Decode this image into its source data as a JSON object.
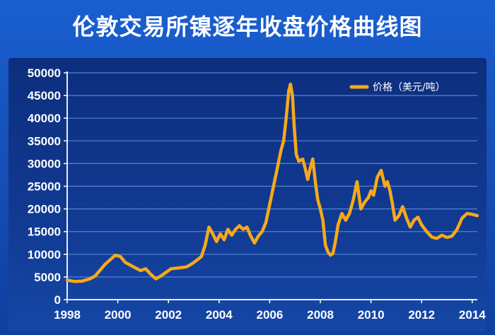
{
  "title": "伦敦交易所镍逐年收盘价格曲线图",
  "colors": {
    "line": "#f6a91b",
    "grid": "#4f86d6",
    "axis": "#ffffff",
    "text": "#ffffff"
  },
  "chart_data": {
    "type": "line",
    "title": "伦敦交易所镍逐年收盘价格曲线图",
    "xlabel": "",
    "ylabel": "",
    "xlim": [
      1998,
      2014.2
    ],
    "ylim": [
      0,
      50000
    ],
    "x_ticks": [
      1998,
      2000,
      2002,
      2004,
      2006,
      2008,
      2010,
      2012,
      2014
    ],
    "y_ticks": [
      0,
      5000,
      10000,
      15000,
      20000,
      25000,
      30000,
      35000,
      40000,
      45000,
      50000
    ],
    "grid": true,
    "legend": "top-right",
    "series": [
      {
        "name": "价格（美元/吨）",
        "x": [
          1998.0,
          1998.3,
          1998.6,
          1998.9,
          1999.1,
          1999.3,
          1999.5,
          1999.7,
          1999.9,
          2000.1,
          2000.3,
          2000.5,
          2000.7,
          2000.9,
          2001.1,
          2001.3,
          2001.5,
          2001.7,
          2001.9,
          2002.1,
          2002.4,
          2002.7,
          2002.9,
          2003.1,
          2003.3,
          2003.45,
          2003.6,
          2003.75,
          2003.9,
          2004.05,
          2004.2,
          2004.35,
          2004.5,
          2004.65,
          2004.8,
          2004.95,
          2005.1,
          2005.25,
          2005.4,
          2005.55,
          2005.7,
          2005.85,
          2006.0,
          2006.15,
          2006.3,
          2006.45,
          2006.55,
          2006.65,
          2006.75,
          2006.82,
          2006.9,
          2006.97,
          2007.05,
          2007.15,
          2007.3,
          2007.4,
          2007.5,
          2007.6,
          2007.7,
          2007.8,
          2007.9,
          2008.0,
          2008.1,
          2008.2,
          2008.3,
          2008.4,
          2008.5,
          2008.6,
          2008.7,
          2008.85,
          2009.0,
          2009.15,
          2009.3,
          2009.45,
          2009.6,
          2009.75,
          2009.9,
          2010.0,
          2010.1,
          2010.25,
          2010.4,
          2010.55,
          2010.65,
          2010.75,
          2010.85,
          2010.95,
          2011.1,
          2011.25,
          2011.4,
          2011.55,
          2011.7,
          2011.85,
          2012.0,
          2012.2,
          2012.4,
          2012.6,
          2012.8,
          2013.0,
          2013.2,
          2013.4,
          2013.6,
          2013.8,
          2014.0,
          2014.2
        ],
        "values": [
          4300,
          4000,
          4100,
          4600,
          5200,
          6500,
          7800,
          8800,
          9800,
          9500,
          8200,
          7600,
          7000,
          6400,
          6800,
          5600,
          4600,
          5200,
          6000,
          6800,
          7000,
          7200,
          7800,
          8600,
          9500,
          12000,
          16000,
          14500,
          12800,
          14500,
          13200,
          15500,
          14200,
          15500,
          16300,
          15500,
          16000,
          14000,
          12500,
          14000,
          15000,
          17000,
          21000,
          25000,
          29000,
          33000,
          35000,
          40000,
          46000,
          47500,
          45000,
          38000,
          32000,
          30500,
          31000,
          29000,
          26500,
          29000,
          31000,
          26000,
          22000,
          20000,
          17500,
          12000,
          10500,
          9800,
          10200,
          13000,
          16500,
          19000,
          17500,
          19000,
          22000,
          26000,
          20000,
          21500,
          22500,
          24000,
          23000,
          27000,
          28500,
          25000,
          26000,
          24000,
          21000,
          17500,
          18500,
          20500,
          18000,
          16000,
          17500,
          18200,
          16500,
          15000,
          13800,
          13500,
          14200,
          13700,
          14000,
          15500,
          18000,
          19000,
          18800,
          18500
        ]
      }
    ]
  }
}
